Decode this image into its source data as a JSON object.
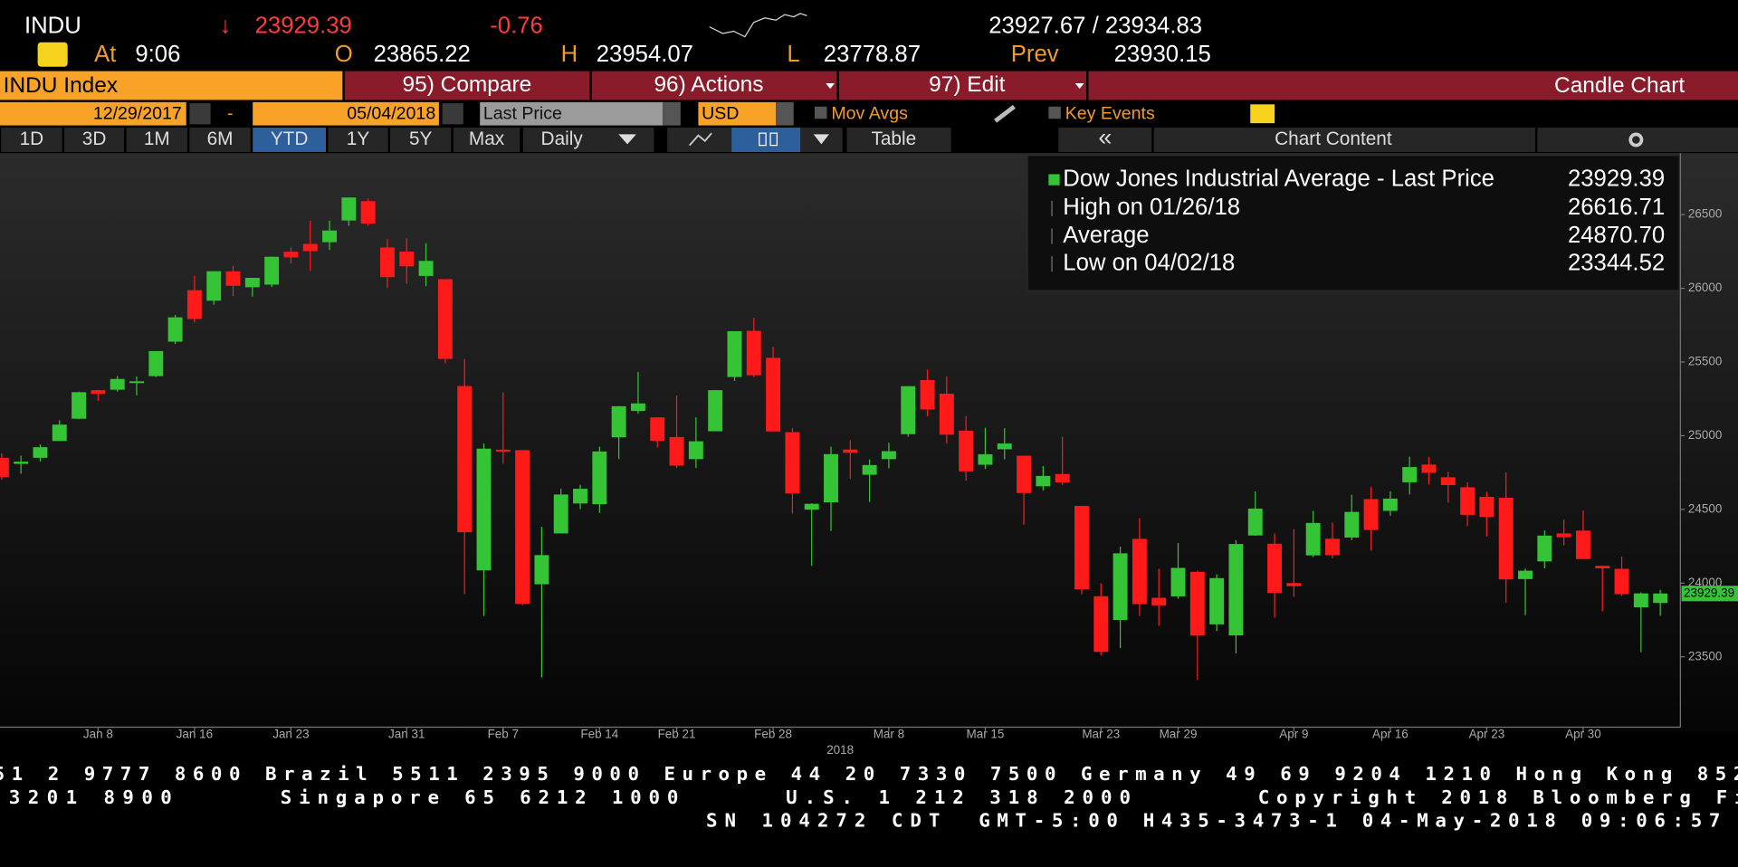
{
  "header": {
    "ticker": "INDU",
    "direction": "↓",
    "last": "23929.39",
    "change": "-0.76",
    "bid_ask": "23927.67 / 23934.83",
    "time_label": "At",
    "time": "9:06",
    "open_label": "O",
    "open": "23865.22",
    "high_label": "H",
    "high": "23954.07",
    "low_label": "L",
    "low": "23778.87",
    "prev_label": "Prev",
    "prev": "23930.15"
  },
  "toolbar": {
    "security": "INDU Index",
    "compare": "95) Compare",
    "actions": "96) Actions",
    "edit": "97) Edit",
    "view": "Candle Chart",
    "start_date": "12/29/2017",
    "separator": "-",
    "end_date": "05/04/2018",
    "field": "Last Price",
    "currency": "USD",
    "mov_avgs": "Mov Avgs",
    "key_events": "Key Events",
    "ranges": [
      "1D",
      "3D",
      "1M",
      "6M",
      "YTD",
      "1Y",
      "5Y",
      "Max"
    ],
    "active_range": "YTD",
    "frequency": "Daily",
    "table": "Table",
    "collapse": "«",
    "chart_content": "Chart Content"
  },
  "chart_data": {
    "type": "candlestick",
    "categories": [
      null,
      null,
      null,
      null,
      null,
      "Jan 8",
      null,
      null,
      null,
      null,
      "Jan 16",
      null,
      null,
      null,
      null,
      "Jan 23",
      null,
      null,
      null,
      null,
      null,
      "Jan 31",
      null,
      null,
      null,
      null,
      "Feb 7",
      null,
      null,
      null,
      null,
      "Feb 14",
      null,
      null,
      null,
      "Feb 21",
      null,
      null,
      null,
      null,
      "Feb 28",
      null,
      null,
      null,
      null,
      null,
      "Mar 8",
      null,
      null,
      null,
      null,
      "Mar 15",
      null,
      null,
      null,
      null,
      null,
      "Mar 23",
      null,
      null,
      null,
      "Mar 29",
      null,
      null,
      null,
      null,
      null,
      "Apr 9",
      null,
      null,
      null,
      null,
      "Apr 16",
      null,
      null,
      null,
      null,
      "Apr 23",
      null,
      null,
      null,
      null,
      "Apr 30",
      null,
      null,
      null,
      null
    ],
    "x_label": "2018",
    "open": [
      24850,
      24809,
      24850,
      24964,
      25115,
      25309,
      25312,
      25357,
      25404,
      25638,
      25987,
      25916,
      26115,
      26007,
      26025,
      26248,
      26301,
      26313,
      26460,
      26591,
      26277,
      26249,
      26084,
      26062,
      25337,
      24086,
      24905,
      24902,
      23992,
      24337,
      24540,
      24535,
      24989,
      25168,
      25124,
      24991,
      24841,
      25030,
      25398,
      25711,
      25528,
      25024,
      24498,
      24548,
      24906,
      24735,
      24841,
      25010,
      25377,
      25285,
      25034,
      24803,
      24908,
      24864,
      24657,
      24740,
      24524,
      23911,
      23750,
      24300,
      23900,
      23910,
      24076,
      23720,
      23645,
      24323,
      24267,
      24000,
      24188,
      24301,
      24309,
      24570,
      24490,
      24684,
      24804,
      24718,
      24650,
      24585,
      24579,
      24027,
      24147,
      24337,
      24356,
      24117,
      24097,
      23836,
      23865.22
    ],
    "high": [
      24880,
      24864,
      24941,
      25105,
      25299,
      25311,
      25405,
      25402,
      25574,
      25819,
      26086,
      26115,
      26153,
      26071,
      26215,
      26277,
      26459,
      26458,
      26617,
      26609,
      26334,
      26339,
      26306,
      26062,
      25521,
      24947,
      25294,
      24903,
      24382,
      24640,
      24667,
      24925,
      25200,
      25432,
      25125,
      25273,
      25125,
      25310,
      25709,
      25800,
      25604,
      25050,
      24541,
      24926,
      24970,
      24839,
      24952,
      25336,
      25449,
      25402,
      25133,
      25054,
      25051,
      24864,
      24793,
      24993,
      24524,
      23998,
      24247,
      24442,
      24097,
      24272,
      24084,
      24060,
      24291,
      24622,
      24336,
      24367,
      24490,
      24411,
      24599,
      24654,
      24623,
      24858,
      24856,
      24755,
      24684,
      24619,
      24750,
      24098,
      24357,
      24431,
      24492,
      24119,
      24180,
      23937,
      23954.07
    ],
    "low": [
      24700,
      24742,
      24825,
      24963,
      25112,
      25235,
      25300,
      25273,
      25398,
      25621,
      25767,
      25889,
      25947,
      25943,
      26008,
      26170,
      26119,
      26260,
      26424,
      26424,
      26002,
      26031,
      26014,
      25490,
      23924,
      23778,
      24811,
      23849,
      23360,
      24337,
      24502,
      24476,
      24842,
      25149,
      24920,
      24781,
      24781,
      25030,
      25371,
      25397,
      25029,
      24471,
      24117,
      24353,
      24708,
      24550,
      24778,
      24993,
      25131,
      24946,
      24695,
      24774,
      24840,
      24396,
      24629,
      24665,
      23926,
      23509,
      23559,
      23777,
      23710,
      23894,
      23344,
      23675,
      23523,
      24321,
      23765,
      23906,
      24177,
      24168,
      24291,
      24221,
      24457,
      24601,
      24669,
      24545,
      24386,
      24316,
      23865,
      23782,
      24100,
      24256,
      24162,
      23808,
      23913,
      23531,
      23778.87
    ],
    "close": [
      24719,
      24824,
      24922,
      25075,
      25295,
      25283,
      25385,
      25369,
      25574,
      25803,
      25792,
      26116,
      26017,
      26071,
      26214,
      26210,
      26252,
      26392,
      26616,
      26439,
      26076,
      26149,
      26186,
      25521,
      24345,
      24912,
      24893,
      23860,
      24190,
      24601,
      24640,
      24893,
      25200,
      25219,
      24964,
      24797,
      24962,
      25309,
      25709,
      25410,
      25029,
      24608,
      24538,
      24875,
      24884,
      24801,
      24895,
      25336,
      25178,
      25007,
      24758,
      24874,
      24947,
      24611,
      24727,
      24683,
      23958,
      23533,
      24202,
      23857,
      23849,
      24103,
      23644,
      24034,
      24265,
      24505,
      23933,
      23979,
      24408,
      24189,
      24483,
      24360,
      24573,
      24787,
      24748,
      24665,
      24463,
      24448,
      24025,
      24084,
      24322,
      24311,
      24163,
      24100,
      23925,
      23930,
      23929.39
    ],
    "up_color": "#35c435",
    "down_color": "#ff1a1a",
    "ylim": [
      23030,
      26902
    ],
    "yticks": [
      23500,
      24000,
      24500,
      25000,
      25500,
      26000,
      26500
    ],
    "legend": [
      {
        "label": "Dow Jones Industrial Average - Last Price",
        "value": "23929.39"
      },
      {
        "label": "High on 01/26/18",
        "value": "26616.71"
      },
      {
        "label": "Average",
        "value": "24870.70"
      },
      {
        "label": "Low on 04/02/18",
        "value": "23344.52"
      }
    ]
  },
  "footer": {
    "line1": "51 2 9777 8600 Brazil 5511 2395 9000 Europe 44 20 7330 7500 Germany 49 69 9204 1210 Hong Kong 852",
    "line2": [
      "3201 8900",
      "Singapore 65 6212 1000",
      "U.S. 1 212 318 2000",
      "Copyright 2018 Bloomberg Fi"
    ],
    "line3": [
      "SN 104272 CDT",
      "GMT-5:00 H435-3473-1 04-May-2018 09:06:57"
    ]
  }
}
